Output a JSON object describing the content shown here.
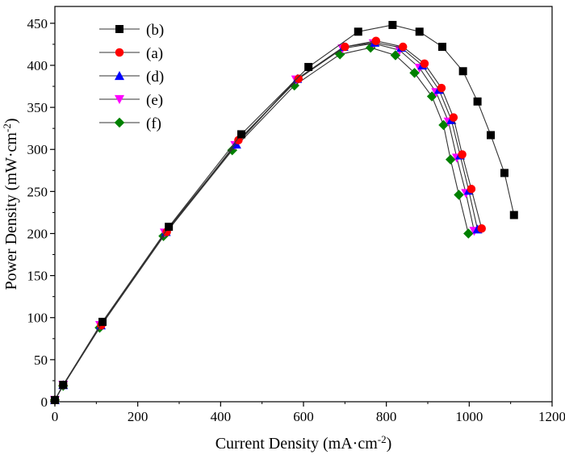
{
  "chart_data": {
    "type": "line",
    "title": "",
    "xlabel": "Current Density (mA·cm",
    "xlabel_sup": "-2",
    "xlabel_end": ")",
    "ylabel": "Power Density (mW·cm",
    "ylabel_sup": "-2",
    "ylabel_end": ")",
    "xlim": [
      0,
      1200
    ],
    "ylim": [
      0,
      470
    ],
    "x_ticks": [
      0,
      200,
      400,
      600,
      800,
      1000,
      1200
    ],
    "y_ticks": [
      0,
      50,
      100,
      150,
      200,
      250,
      300,
      350,
      400,
      450
    ],
    "x_tick_labels": [
      "0",
      "200",
      "400",
      "600",
      "800",
      "1000",
      "1200"
    ],
    "y_tick_labels": [
      "0",
      "50",
      "100",
      "150",
      "200",
      "250",
      "300",
      "350",
      "400",
      "450"
    ],
    "legend_position": "top-left",
    "grid": false,
    "series": [
      {
        "name": "(b)",
        "marker": "square",
        "color": "#000000",
        "x": [
          0,
          20,
          115,
          275,
          450,
          612,
          732,
          815,
          880,
          935,
          985,
          1020,
          1052,
          1085,
          1108
        ],
        "y": [
          2,
          20,
          95,
          208,
          318,
          398,
          440,
          448,
          440,
          422,
          393,
          357,
          317,
          272,
          222
        ]
      },
      {
        "name": "(a)",
        "marker": "circle",
        "color": "#ff0000",
        "x": [
          0,
          20,
          112,
          270,
          443,
          588,
          700,
          775,
          840,
          892,
          933,
          962,
          983,
          1005,
          1030
        ],
        "y": [
          2,
          20,
          91,
          202,
          311,
          384,
          422,
          429,
          422,
          402,
          373,
          338,
          294,
          253,
          206
        ]
      },
      {
        "name": "(d)",
        "marker": "triangle-up",
        "color": "#0000ff",
        "x": [
          0,
          20,
          111,
          268,
          438,
          585,
          697,
          772,
          836,
          887,
          927,
          957,
          978,
          999,
          1020
        ],
        "y": [
          2,
          20,
          91,
          202,
          306,
          384,
          422,
          427,
          421,
          400,
          371,
          335,
          293,
          251,
          205
        ]
      },
      {
        "name": "(e)",
        "marker": "triangle-down",
        "color": "#ff00ff",
        "x": [
          0,
          20,
          109,
          265,
          435,
          582,
          694,
          769,
          832,
          880,
          920,
          950,
          970,
          992,
          1012
        ],
        "y": [
          2,
          20,
          91,
          201,
          305,
          383,
          420,
          426,
          418,
          397,
          368,
          333,
          290,
          248,
          203
        ]
      },
      {
        "name": "(f)",
        "marker": "diamond",
        "color": "#008000",
        "x": [
          0,
          20,
          108,
          262,
          428,
          578,
          688,
          762,
          822,
          868,
          910,
          938,
          955,
          975,
          998
        ],
        "y": [
          2,
          19,
          88,
          197,
          299,
          376,
          413,
          421,
          412,
          391,
          363,
          329,
          288,
          246,
          200
        ]
      }
    ]
  }
}
